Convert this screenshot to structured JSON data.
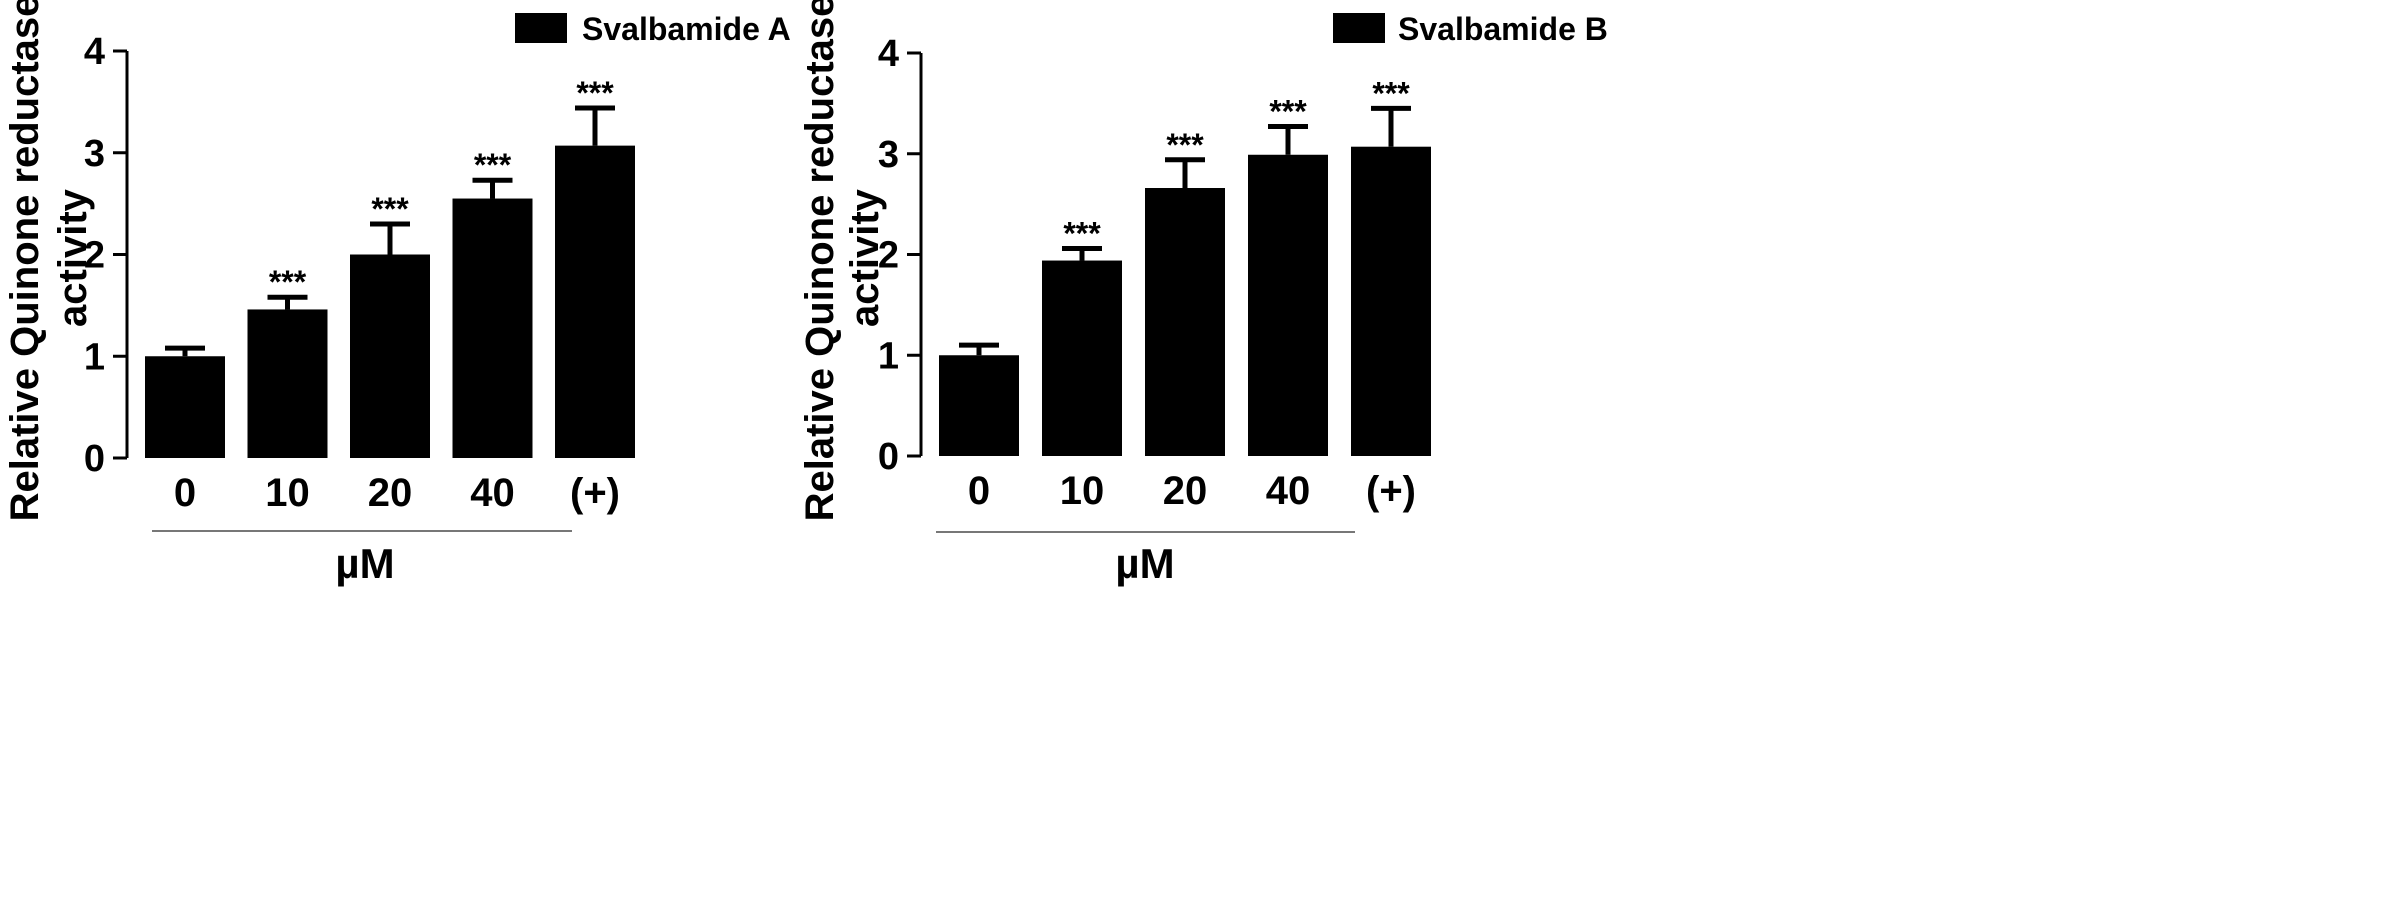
{
  "chart_data": [
    {
      "type": "bar",
      "legend": "Svalbamide A",
      "categories": [
        "0",
        "10",
        "20",
        "40",
        "(+)"
      ],
      "values": [
        1.0,
        1.46,
        2.0,
        2.55,
        3.07
      ],
      "errors": [
        0.08,
        0.12,
        0.3,
        0.18,
        0.37
      ],
      "significance": [
        "",
        "***",
        "***",
        "***",
        "***"
      ],
      "ylabel_lines": [
        "Relative Quinone reductase",
        "activity"
      ],
      "xlabel": "µM",
      "ylim": [
        0,
        4
      ],
      "yticks": [
        "0",
        "1",
        "2",
        "3",
        "4"
      ]
    },
    {
      "type": "bar",
      "legend": "Svalbamide B",
      "categories": [
        "0",
        "10",
        "20",
        "40",
        "(+)"
      ],
      "values": [
        1.0,
        1.94,
        2.66,
        2.99,
        3.07
      ],
      "errors": [
        0.1,
        0.12,
        0.28,
        0.28,
        0.38
      ],
      "significance": [
        "",
        "***",
        "***",
        "***",
        "***"
      ],
      "ylabel_lines": [
        "Relative Quinone reductase",
        "activity"
      ],
      "xlabel": "µM",
      "ylim": [
        0,
        4
      ],
      "yticks": [
        "0",
        "1",
        "2",
        "3",
        "4"
      ]
    }
  ]
}
